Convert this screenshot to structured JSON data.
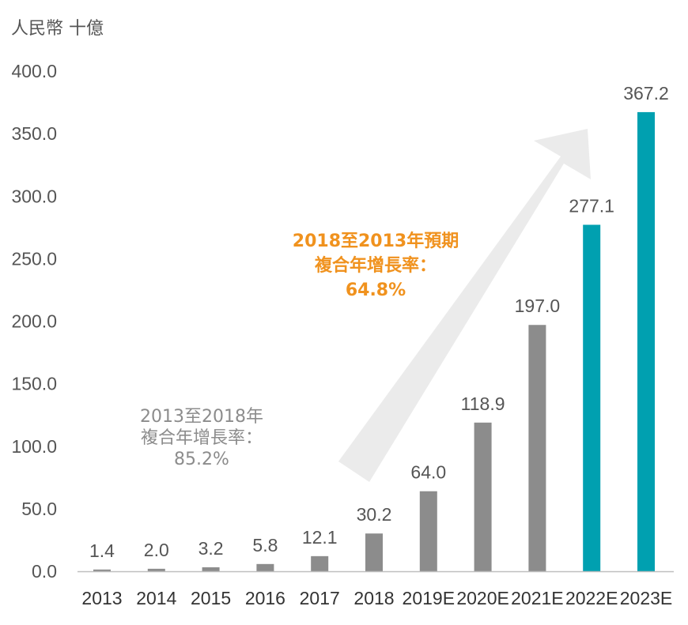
{
  "chart_data": {
    "type": "bar",
    "unit_label": "人民幣 十億",
    "categories": [
      "2013",
      "2014",
      "2015",
      "2016",
      "2017",
      "2018",
      "2019E",
      "2020E",
      "2021E",
      "2022E",
      "2023E"
    ],
    "values": [
      1.4,
      2.0,
      3.2,
      5.8,
      12.1,
      30.2,
      64.0,
      118.9,
      197.0,
      277.1,
      367.2
    ],
    "value_labels": [
      "1.4",
      "2.0",
      "3.2",
      "5.8",
      "12.1",
      "30.2",
      "64.0",
      "118.9",
      "197.0",
      "277.1",
      "367.2"
    ],
    "y_ticks": [
      "0.0",
      "50.0",
      "100.0",
      "150.0",
      "200.0",
      "250.0",
      "300.0",
      "350.0",
      "400.0"
    ],
    "ylim": [
      0,
      400
    ],
    "grid": false,
    "colors": {
      "historical": "#8c8c8c",
      "forecast_grey": "#8c8c8c",
      "forecast_teal": "#00a0b0",
      "bar_colors": [
        "#8c8c8c",
        "#8c8c8c",
        "#8c8c8c",
        "#8c8c8c",
        "#8c8c8c",
        "#8c8c8c",
        "#8c8c8c",
        "#8c8c8c",
        "#8c8c8c",
        "#00a0b0",
        "#00a0b0"
      ],
      "arrow": "#ebebeb",
      "axis": "#bfbfbf",
      "text": "#555555"
    },
    "annotations": {
      "cagr_historical": "2013至2018年\n複合年增長率：\n85.2%",
      "cagr_forecast": "2018至2013年預期\n複合年增長率：\n64.8%"
    }
  }
}
